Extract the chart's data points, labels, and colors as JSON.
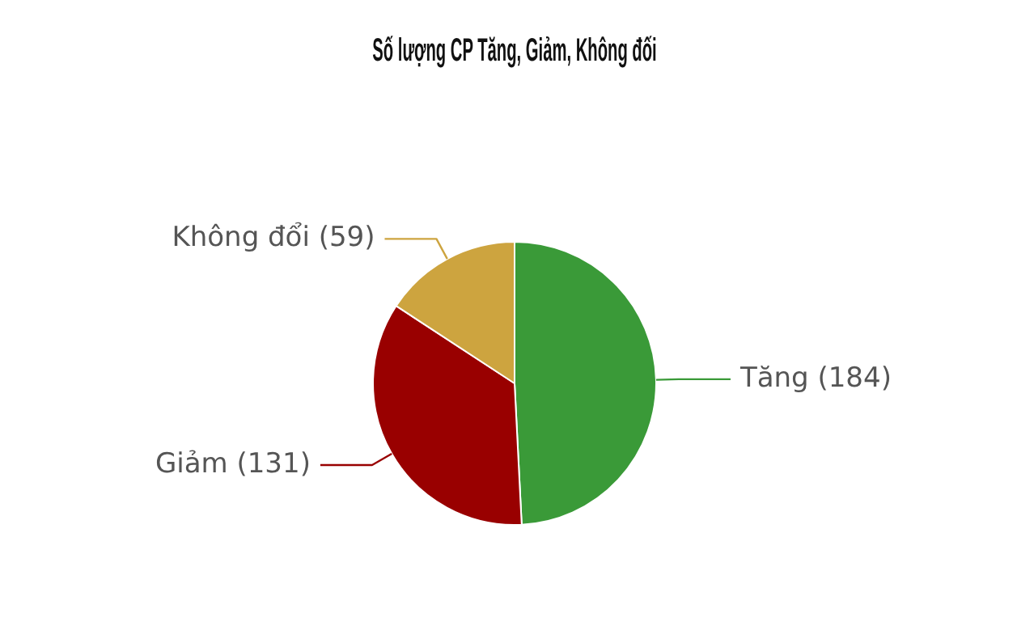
{
  "chart_data": {
    "type": "pie",
    "title": "Số lượng CP Tăng, Giảm, Không đối",
    "categories": [
      "Tăng",
      "Giảm",
      "Không đổi"
    ],
    "values": [
      184,
      131,
      59
    ],
    "colors": [
      "#3a9a38",
      "#990000",
      "#cda43f"
    ],
    "value_labels": [
      "(184)",
      "(131)",
      "(59)"
    ],
    "legend": false
  }
}
